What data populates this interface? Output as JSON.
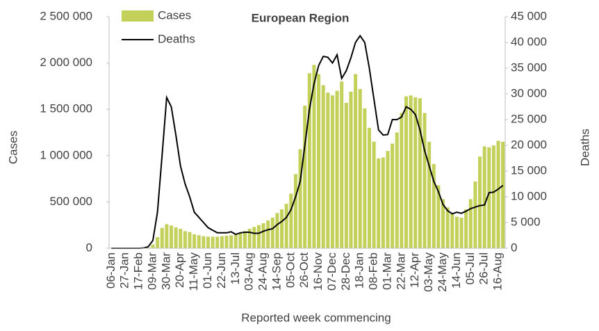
{
  "chart_data": {
    "type": "bar_line",
    "title": "European Region",
    "x_label": "Reported week commencing",
    "y_label": "Cases",
    "y2_label": "Deaths",
    "categories": [
      "06-Jan",
      null,
      null,
      "27-Jan",
      null,
      null,
      "17-Feb",
      null,
      null,
      "09-Mar",
      null,
      null,
      "30-Mar",
      null,
      null,
      "20-Apr",
      null,
      null,
      "11-May",
      null,
      null,
      "01-Jun",
      null,
      null,
      "22-Jun",
      null,
      null,
      "13-Jul",
      null,
      null,
      "03-Aug",
      null,
      null,
      "24-Aug",
      null,
      null,
      "14-Sep",
      null,
      null,
      "05-Oct",
      null,
      null,
      "26-Oct",
      null,
      null,
      "16-Nov",
      null,
      null,
      "07-Dec",
      null,
      null,
      "28-Dec",
      null,
      null,
      "18-Jan",
      null,
      null,
      "08-Feb",
      null,
      null,
      "01-Mar",
      null,
      null,
      "22-Mar",
      null,
      null,
      "12-Apr",
      null,
      null,
      "03-May",
      null,
      null,
      "24-May",
      null,
      null,
      "14-Jun",
      null,
      null,
      "05-Jul",
      null,
      null,
      "26-Jul",
      null,
      null,
      "16-Aug",
      null
    ],
    "series": [
      {
        "name": "Cases",
        "kind": "bar",
        "color": "#c3d05a",
        "values": [
          0,
          0,
          0,
          0,
          0,
          0,
          0,
          2000,
          8000,
          40000,
          120000,
          220000,
          260000,
          245000,
          225000,
          210000,
          185000,
          175000,
          150000,
          140000,
          130000,
          125000,
          125000,
          125000,
          130000,
          135000,
          140000,
          145000,
          165000,
          185000,
          210000,
          230000,
          250000,
          270000,
          300000,
          330000,
          380000,
          420000,
          480000,
          590000,
          800000,
          1070000,
          1540000,
          1890000,
          1980000,
          1880000,
          1760000,
          1680000,
          1650000,
          1700000,
          1800000,
          1570000,
          1690000,
          1880000,
          1720000,
          1510000,
          1300000,
          1150000,
          970000,
          980000,
          1050000,
          1130000,
          1250000,
          1460000,
          1640000,
          1650000,
          1630000,
          1620000,
          1460000,
          1150000,
          910000,
          680000,
          530000,
          440000,
          380000,
          340000,
          330000,
          420000,
          530000,
          720000,
          990000,
          1100000,
          1090000,
          1110000,
          1160000,
          1150000
        ]
      },
      {
        "name": "Deaths",
        "kind": "line",
        "axis": "y2",
        "color": "#000000",
        "values": [
          0,
          0,
          0,
          0,
          0,
          0,
          0,
          50,
          300,
          1500,
          7000,
          18000,
          29300,
          27500,
          22000,
          16000,
          12500,
          10000,
          7000,
          6000,
          5000,
          4000,
          3500,
          3000,
          3000,
          3000,
          3200,
          2700,
          3000,
          3100,
          3100,
          2900,
          2900,
          3300,
          3600,
          3800,
          4600,
          5200,
          6000,
          7500,
          10000,
          13000,
          20000,
          27000,
          32000,
          35500,
          37300,
          37100,
          36000,
          37600,
          33000,
          34500,
          37000,
          40000,
          41300,
          40000,
          35000,
          29000,
          23000,
          22000,
          22100,
          25000,
          25000,
          25500,
          27500,
          27000,
          26000,
          23000,
          19000,
          16000,
          13000,
          11000,
          8500,
          7300,
          6700,
          7000,
          6800,
          7200,
          7700,
          8000,
          8300,
          8400,
          10800,
          10900,
          11500,
          12200
        ]
      }
    ],
    "ylim": [
      0,
      2500000
    ],
    "yticks": [
      0,
      {
        "value": 500000,
        "label": "500 000"
      },
      {
        "value": 1000000,
        "label": "1 000 000"
      },
      {
        "value": 1500000,
        "label": "1 500 000"
      },
      {
        "value": 2000000,
        "label": "2 000 000"
      },
      {
        "value": 2500000,
        "label": "2 500 000"
      }
    ],
    "y2lim": [
      0,
      45000
    ],
    "y2ticks": [
      0,
      {
        "value": 5000,
        "label": "5 000"
      },
      {
        "value": 10000,
        "label": "10 000"
      },
      {
        "value": 15000,
        "label": "15 000"
      },
      {
        "value": 20000,
        "label": "20 000"
      },
      {
        "value": 25000,
        "label": "25 000"
      },
      {
        "value": 30000,
        "label": "30 000"
      },
      {
        "value": 35000,
        "label": "35 000"
      },
      {
        "value": 40000,
        "label": "40 000"
      },
      {
        "value": 45000,
        "label": "45 000"
      }
    ],
    "legend": "top-left",
    "grid": false
  }
}
